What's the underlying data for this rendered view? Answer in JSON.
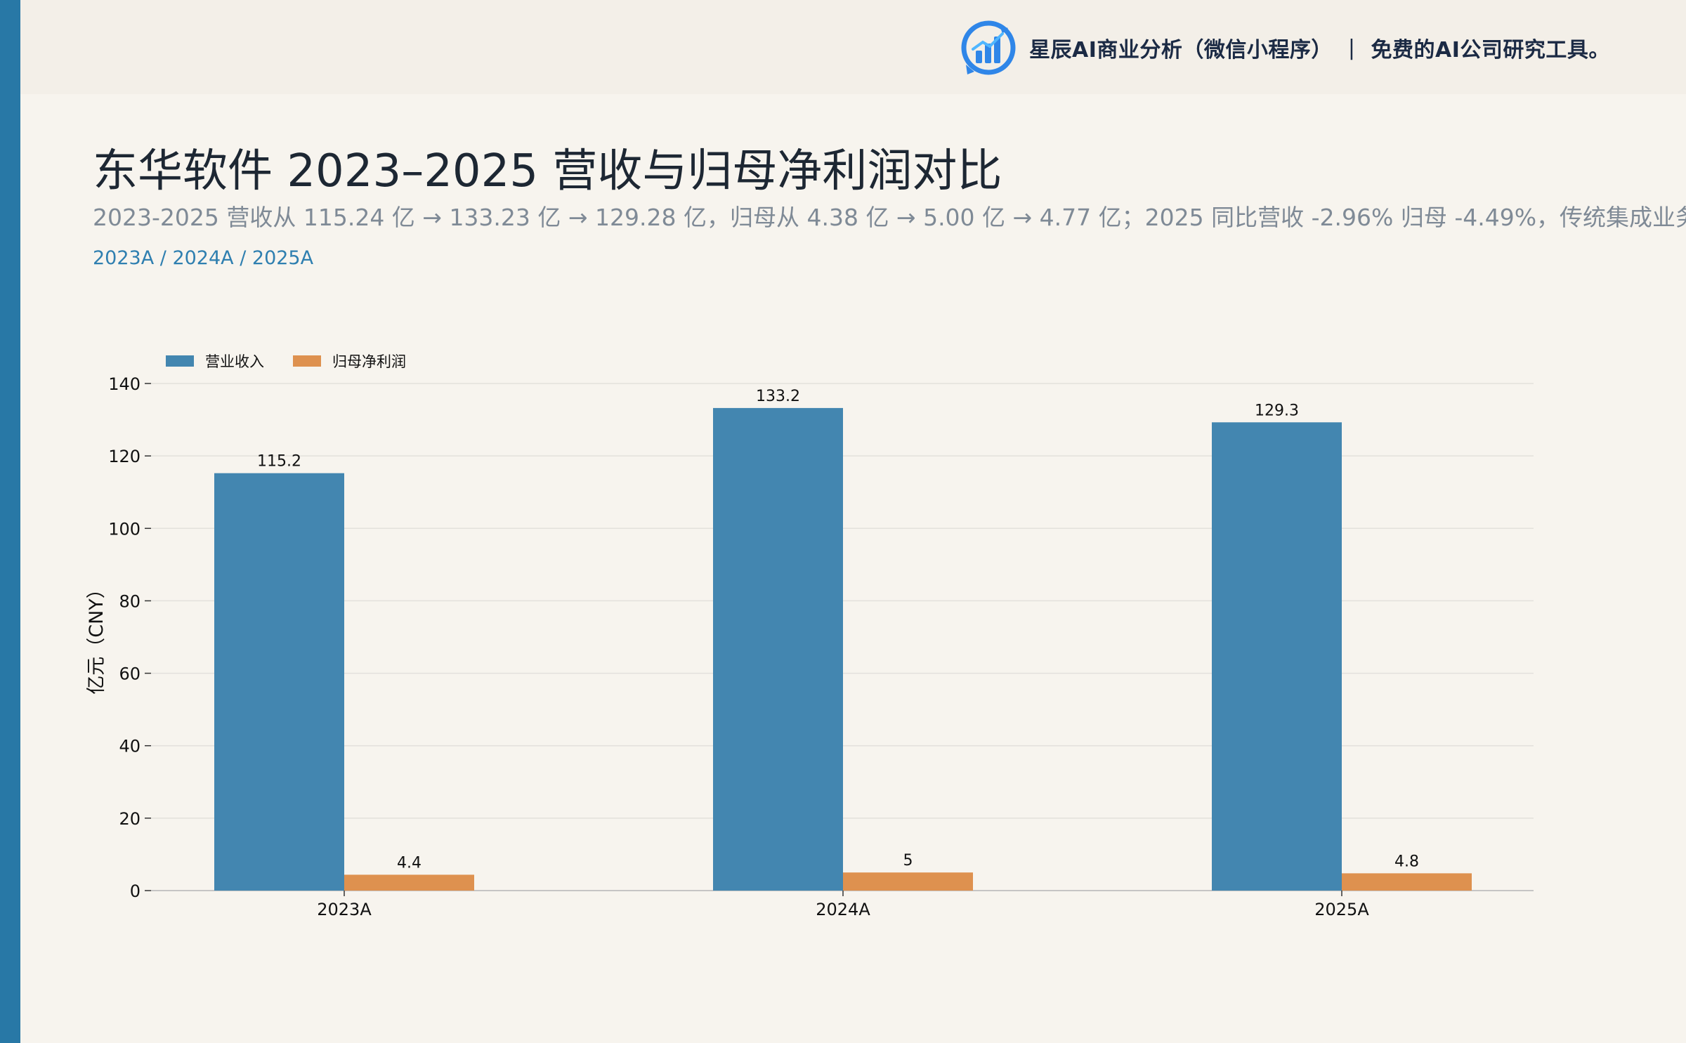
{
  "header": {
    "brand_text": "星辰AI商业分析（微信小程序）",
    "brand_separator": "|",
    "brand_tagline": "免费的AI公司研究工具。",
    "brand_icon": "bar-chart-logo-icon"
  },
  "colors": {
    "accent_stripe": "#2878a6",
    "revenue": "#4386b0",
    "net_profit": "#de914f"
  },
  "chart_data": {
    "type": "bar",
    "title": "东华软件 2023–2025 营收与归母净利润对比",
    "subtitle": "2023-2025 营收从 115.24 亿 → 133.23 亿 → 129.28 亿，归母从 4.38 亿 → 5.00 亿 → 4.77 亿；2025 同比营收 -2.96% 归母 -4.49%，传统集成业务承压已传导",
    "periods_label": "2023A / 2024A / 2025A",
    "categories": [
      "2023A",
      "2024A",
      "2025A"
    ],
    "series": [
      {
        "name": "营业收入",
        "values": [
          115.24,
          133.23,
          129.28
        ],
        "labels": [
          "115.2",
          "133.2",
          "129.3"
        ],
        "color": "#4386b0"
      },
      {
        "name": "归母净利润",
        "values": [
          4.38,
          5.0,
          4.77
        ],
        "labels": [
          "4.4",
          "5",
          "4.8"
        ],
        "color": "#de914f"
      }
    ],
    "ylabel": "亿元（CNY）",
    "xlabel": "",
    "ylim": [
      0,
      140
    ],
    "yticks": [
      0,
      20,
      40,
      60,
      80,
      100,
      120,
      140
    ],
    "grid": true,
    "legend_position": "top-left"
  }
}
